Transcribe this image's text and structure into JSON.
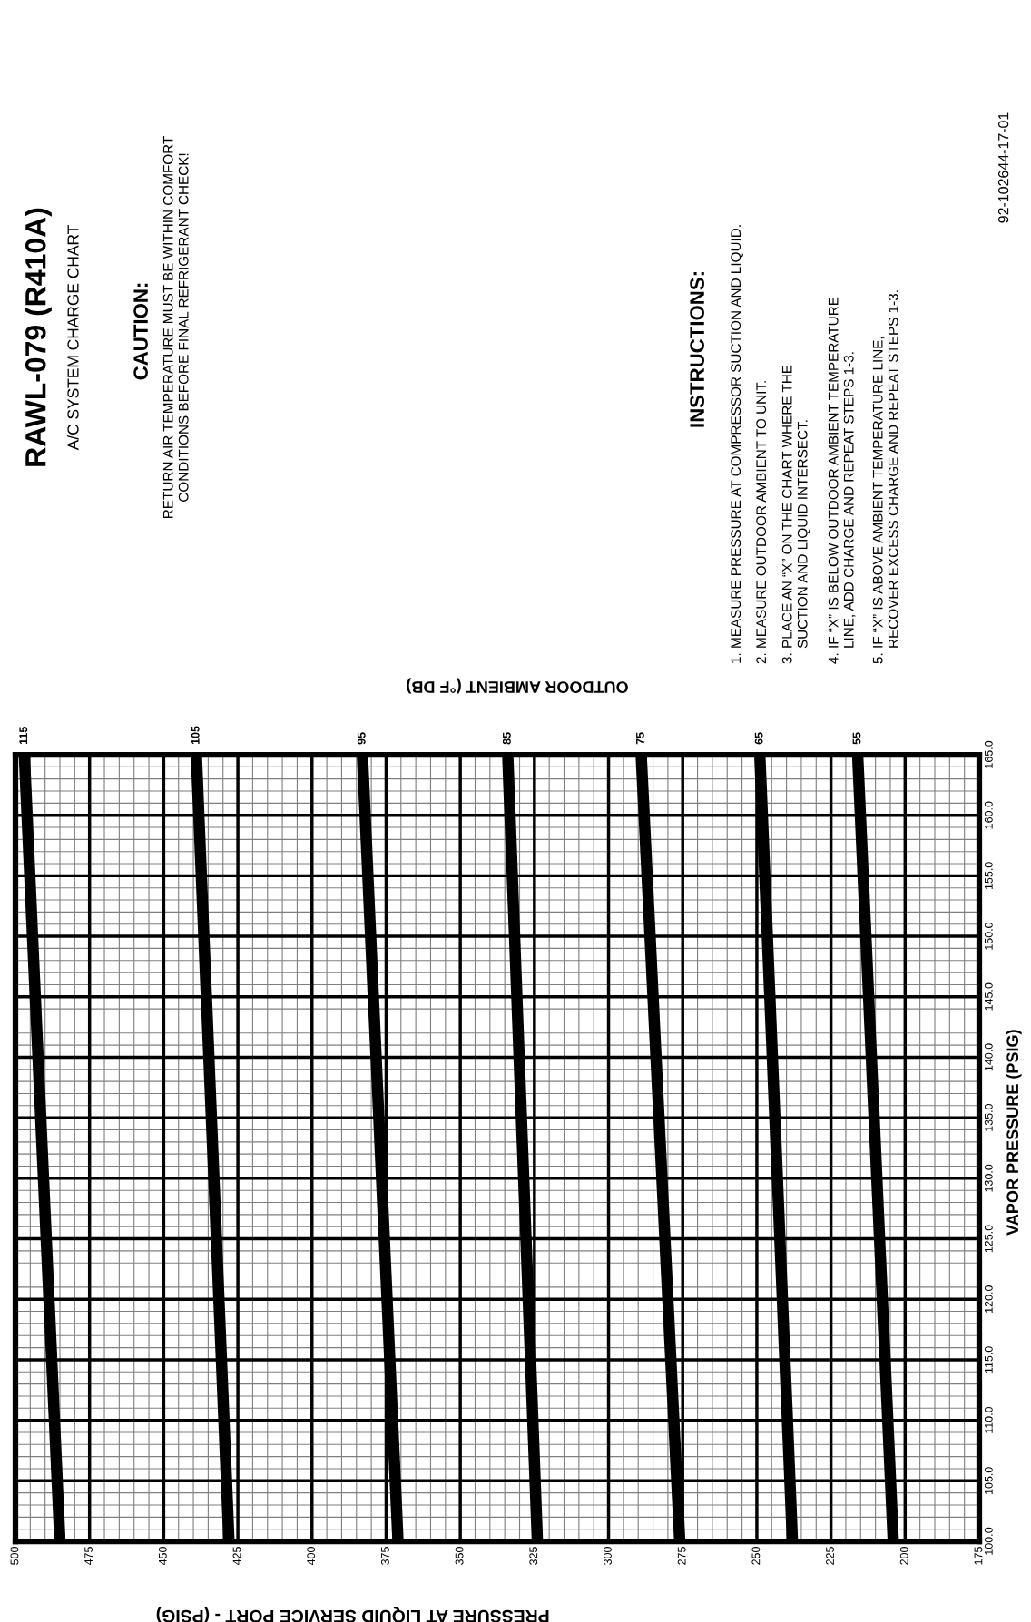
{
  "chart_data": {
    "type": "line",
    "title": "RAWL-079 (R410A)",
    "subtitle": "A/C SYSTEM CHARGE CHART",
    "xlabel": "PRESSURE AT LIQUID SERVICE PORT - (PSIG)",
    "ylabel": "VAPOR PRESSURE (PSIG)",
    "xlim": [
      500,
      175
    ],
    "xticks": [
      500,
      475,
      450,
      425,
      400,
      375,
      350,
      325,
      300,
      275,
      250,
      225,
      200,
      175
    ],
    "ylim": [
      100,
      165
    ],
    "yticks": [
      {
        "value": 100,
        "label": "100.0"
      },
      {
        "value": 105,
        "label": "105.0"
      },
      {
        "value": 110,
        "label": "110.0"
      },
      {
        "value": 115,
        "label": "115.0"
      },
      {
        "value": 120,
        "label": "120.0"
      },
      {
        "value": 125,
        "label": "125.0"
      },
      {
        "value": 130,
        "label": "130.0"
      },
      {
        "value": 135,
        "label": "135.0"
      },
      {
        "value": 140,
        "label": "140.0"
      },
      {
        "value": 145,
        "label": "145.0"
      },
      {
        "value": 150,
        "label": "150.0"
      },
      {
        "value": 155,
        "label": "155.0"
      },
      {
        "value": 160,
        "label": "160.0"
      },
      {
        "value": 165,
        "label": "165.0"
      }
    ],
    "grid": true,
    "legend": false,
    "marker": "none",
    "line_style": "solid",
    "series": [
      {
        "name": "115",
        "color": "#000000",
        "x": [
          485,
          497
        ],
        "values": [
          100,
          165
        ]
      },
      {
        "name": "105",
        "color": "#000000",
        "x": [
          428,
          439
        ],
        "values": [
          100,
          165
        ]
      },
      {
        "name": "95",
        "color": "#000000",
        "x": [
          371,
          383
        ],
        "values": [
          100,
          165
        ]
      },
      {
        "name": "85",
        "color": "#000000",
        "x": [
          324,
          334
        ],
        "values": [
          100,
          165
        ]
      },
      {
        "name": "75",
        "color": "#000000",
        "x": [
          276,
          289
        ],
        "values": [
          100,
          165
        ]
      },
      {
        "name": "65",
        "color": "#000000",
        "x": [
          238,
          249
        ],
        "values": [
          100,
          165
        ]
      },
      {
        "name": "55",
        "color": "#000000",
        "x": [
          204,
          216
        ],
        "values": [
          100,
          165
        ]
      }
    ],
    "annotations": [
      "OUTDOOR AMBIENT (°F DB)",
      "CAUTION:",
      "RETURN AIR TEMPERATURE MUST BE WITHIN COMFORT\nCONDITIONS BEFORE FINAL REFRIGERANT CHECK!",
      "INSTRUCTIONS:",
      "1. MEASURE PRESSURE AT COMPRESSOR SUCTION AND LIQUID.",
      "2. MEASURE OUTDOOR AMBIENT TO UNIT.",
      "3. PLACE AN “X” ON THE CHART WHERE THE\n    SUCTION AND LIQUID INTERSECT.",
      "4. IF “X” IS BELOW OUTDOOR AMBIENT TEMPERATURE\n    LINE, ADD CHARGE AND REPEAT STEPS 1-3.",
      "5. IF “X” IS ABOVE AMBIENT TEMPERATURE LINE,\n    RECOVER EXCESS CHARGE AND REPEAT STEPS 1-3.",
      "92-102644-17-01"
    ]
  }
}
